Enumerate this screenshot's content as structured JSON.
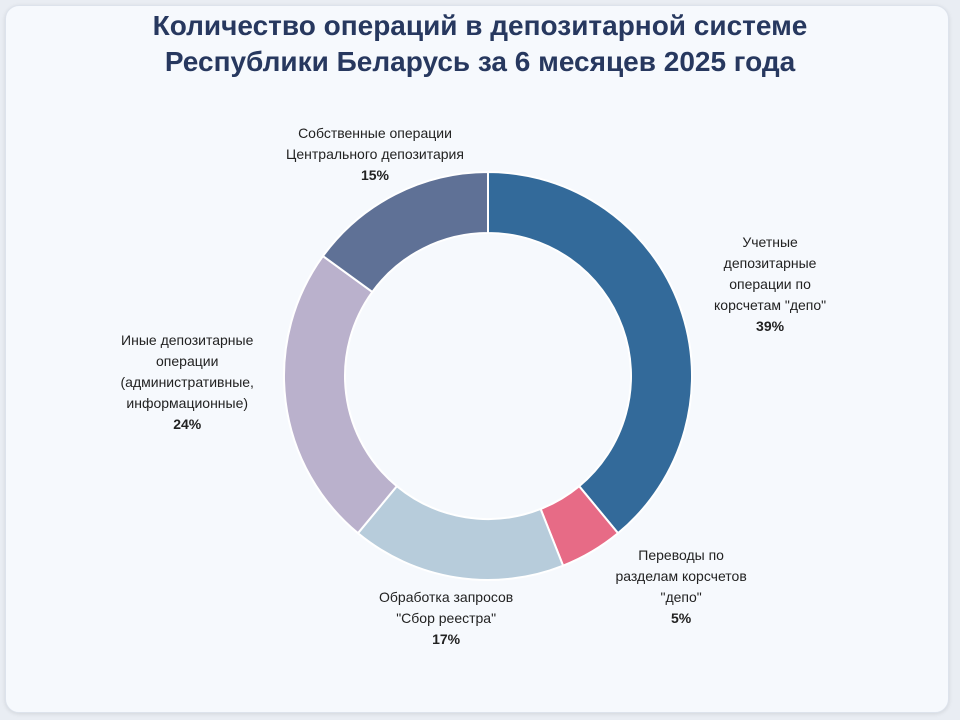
{
  "chart_data": {
    "type": "donut",
    "title_lines": [
      "Количество операций в депозитарной системе",
      "Республики Беларусь за 6 месяцев 2025 года"
    ],
    "slices": [
      {
        "label_lines": [
          "Учетные",
          "депозитарные",
          "операции по",
          "корсчетам \"депо\""
        ],
        "value": 39,
        "value_label": "39%",
        "color": "#336a9a"
      },
      {
        "label_lines": [
          "Переводы по",
          "разделам корсчетов",
          "\"депо\""
        ],
        "value": 5,
        "value_label": "5%",
        "color": "#e76b86"
      },
      {
        "label_lines": [
          "Обработка запросов",
          "\"Сбор реестра\""
        ],
        "value": 17,
        "value_label": "17%",
        "color": "#b7ccdb"
      },
      {
        "label_lines": [
          "Иные депозитарные",
          "операции",
          "(административные,",
          "информационные)"
        ],
        "value": 24,
        "value_label": "24%",
        "color": "#bab1cc"
      },
      {
        "label_lines": [
          "Собственные операции",
          "Центрального депозитария"
        ],
        "value": 15,
        "value_label": "15%",
        "color": "#5f7196"
      }
    ]
  }
}
